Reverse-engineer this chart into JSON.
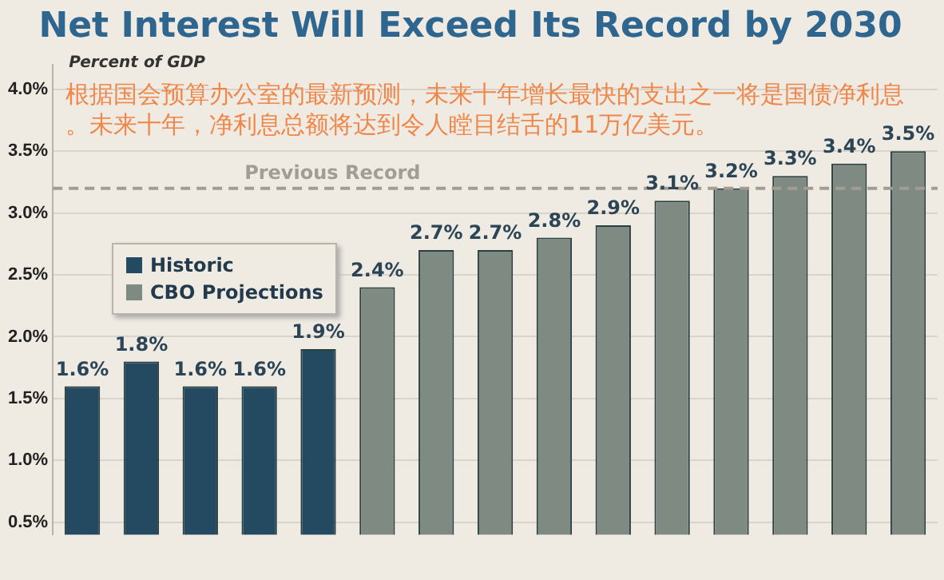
{
  "chart_data": {
    "type": "bar",
    "title": "Net Interest Will Exceed Its Record by 2030",
    "ylabel": "Percent of GDP",
    "annotations": [
      "根据国会预算办公室的最新预测，未来十年增长最快的支出之一将是国债净利息。未来十年，净利息总额将达到令人瞠目结舌的11万亿美元。"
    ],
    "categories": [
      null,
      null,
      null,
      null,
      null,
      null,
      null,
      null,
      null,
      null,
      null,
      null,
      null,
      null,
      null
    ],
    "series": [
      {
        "name": "Historic",
        "color": "#244a62",
        "values": [
          1.6,
          1.8,
          1.6,
          1.6,
          1.9,
          null,
          null,
          null,
          null,
          null,
          null,
          null,
          null,
          null,
          null
        ],
        "value_labels": [
          "1.6%",
          "1.8%",
          "1.6%",
          "1.6%",
          "1.9%",
          null,
          null,
          null,
          null,
          null,
          null,
          null,
          null,
          null,
          null
        ]
      },
      {
        "name": "CBO Projections",
        "color": "#7e8a82",
        "values": [
          null,
          null,
          null,
          null,
          null,
          2.4,
          2.7,
          2.7,
          2.8,
          2.9,
          3.1,
          3.2,
          3.3,
          3.4,
          3.5
        ],
        "value_labels": [
          null,
          null,
          null,
          null,
          null,
          "2.4%",
          "2.7%",
          "2.7%",
          "2.8%",
          "2.9%",
          "3.1%",
          "3.2%",
          "3.3%",
          "3.4%",
          "3.5%"
        ]
      }
    ],
    "ylim": [
      0.4,
      4.2
    ],
    "yticks": [
      {
        "value": 0.5,
        "label": "0.5%"
      },
      {
        "value": 1,
        "label": "1.0%"
      },
      {
        "value": 1.5,
        "label": "1.5%"
      },
      {
        "value": 2,
        "label": "2.0%"
      },
      {
        "value": 2.5,
        "label": "2.5%"
      },
      {
        "value": 3,
        "label": "3.0%"
      },
      {
        "value": 3.5,
        "label": "3.5%"
      },
      {
        "value": 4,
        "label": "4.0%"
      }
    ],
    "ref_lines": [
      {
        "axis": "y",
        "value": 3.2,
        "label": "Previous Record",
        "color": "#a39c92",
        "line_style": "dashed"
      }
    ],
    "grid": "y",
    "legend": "left"
  }
}
